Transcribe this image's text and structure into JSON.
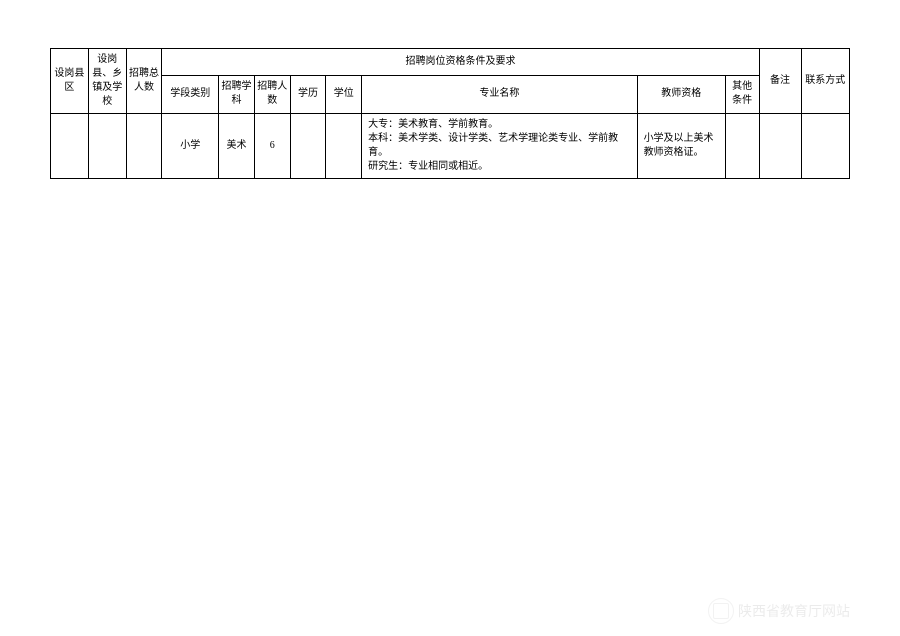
{
  "headers": {
    "col1": "设岗县区",
    "col2": "设岗县、乡镇及学校",
    "col3": "招聘总人数",
    "group_title": "招聘岗位资格条件及要求",
    "col4": "学段类别",
    "col5": "招聘学科",
    "col6": "招聘人数",
    "col7": "学历",
    "col8": "学位",
    "col9": "专业名称",
    "col10": "教师资格",
    "col11": "其他条件",
    "col12": "备注",
    "col13": "联系方式"
  },
  "row": {
    "col1": "",
    "col2": "",
    "col3": "",
    "col4": "小学",
    "col5": "美术",
    "col6": "6",
    "col7": "",
    "col8": "",
    "col9": "大专：美术教育、学前教育。\n本科：美术学类、设计学类、艺术学理论类专业、学前教育。\n研究生：专业相同或相近。",
    "col10": "小学及以上美术教师资格证。",
    "col11": "",
    "col12": "",
    "col13": ""
  },
  "watermark": "陕西省教育厅网站"
}
